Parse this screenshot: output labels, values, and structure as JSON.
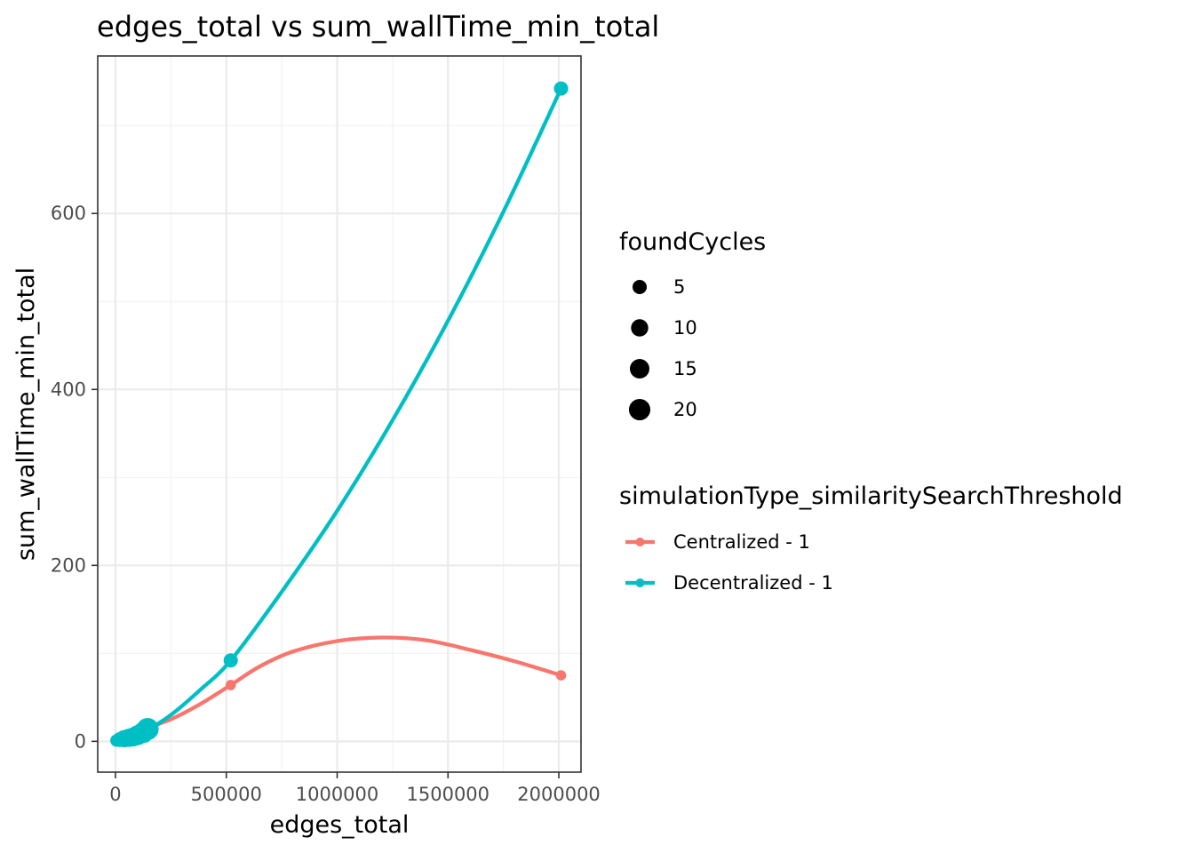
{
  "chart_data": {
    "type": "scatter",
    "title": "edges_total  vs  sum_wallTime_min_total",
    "xlabel": "edges_total",
    "ylabel": "sum_wallTime_min_total",
    "xlim": [
      -80000,
      2100000
    ],
    "ylim": [
      -35,
      779
    ],
    "x_ticks": [
      0,
      500000,
      1000000,
      1500000,
      2000000
    ],
    "x_tick_labels": [
      "0",
      "500000",
      "1000000",
      "1500000",
      "2000000"
    ],
    "y_ticks": [
      0,
      200,
      400,
      600
    ],
    "y_tick_labels": [
      "0",
      "200",
      "400",
      "600"
    ],
    "grid": true,
    "size_legend": {
      "title": "foundCycles",
      "values": [
        5,
        10,
        15,
        20
      ],
      "labels": [
        "5",
        "10",
        "15",
        "20"
      ]
    },
    "color_legend": {
      "title": "simulationType_similaritySearchThreshold",
      "placement": "right"
    },
    "series": [
      {
        "name": "Centralized - 1",
        "color": "#F8766D",
        "points": [
          {
            "x": 5000,
            "y": 1,
            "size": 1
          },
          {
            "x": 20000,
            "y": 2,
            "size": 1
          },
          {
            "x": 40000,
            "y": 3,
            "size": 1
          },
          {
            "x": 60000,
            "y": 5,
            "size": 1
          },
          {
            "x": 90000,
            "y": 8,
            "size": 1
          },
          {
            "x": 140000,
            "y": 15,
            "size": 1
          },
          {
            "x": 520000,
            "y": 64,
            "size": 1
          },
          {
            "x": 2010000,
            "y": 75,
            "size": 1
          }
        ],
        "smooth": [
          [
            0,
            0
          ],
          [
            70000,
            7
          ],
          [
            140000,
            15
          ],
          [
            250000,
            25
          ],
          [
            380000,
            42
          ],
          [
            520000,
            64
          ],
          [
            650000,
            85
          ],
          [
            800000,
            102
          ],
          [
            1000000,
            114
          ],
          [
            1200000,
            118
          ],
          [
            1400000,
            115
          ],
          [
            1600000,
            104
          ],
          [
            1800000,
            91
          ],
          [
            2010000,
            75
          ]
        ]
      },
      {
        "name": "Decentralized - 1",
        "color": "#00BFC4",
        "points": [
          {
            "x": 5000,
            "y": 1,
            "size": 3
          },
          {
            "x": 20000,
            "y": 2,
            "size": 6
          },
          {
            "x": 40000,
            "y": 3,
            "size": 10
          },
          {
            "x": 60000,
            "y": 4,
            "size": 12
          },
          {
            "x": 80000,
            "y": 5,
            "size": 14
          },
          {
            "x": 100000,
            "y": 7,
            "size": 16
          },
          {
            "x": 125000,
            "y": 10,
            "size": 19
          },
          {
            "x": 145000,
            "y": 14,
            "size": 22
          },
          {
            "x": 520000,
            "y": 92,
            "size": 5
          },
          {
            "x": 2010000,
            "y": 742,
            "size": 5
          }
        ],
        "smooth": [
          [
            0,
            0
          ],
          [
            70000,
            5
          ],
          [
            145000,
            13
          ],
          [
            250000,
            30
          ],
          [
            380000,
            58
          ],
          [
            520000,
            92
          ],
          [
            750000,
            170
          ],
          [
            1000000,
            262
          ],
          [
            1250000,
            365
          ],
          [
            1500000,
            478
          ],
          [
            1750000,
            602
          ],
          [
            2010000,
            742
          ]
        ]
      }
    ]
  }
}
